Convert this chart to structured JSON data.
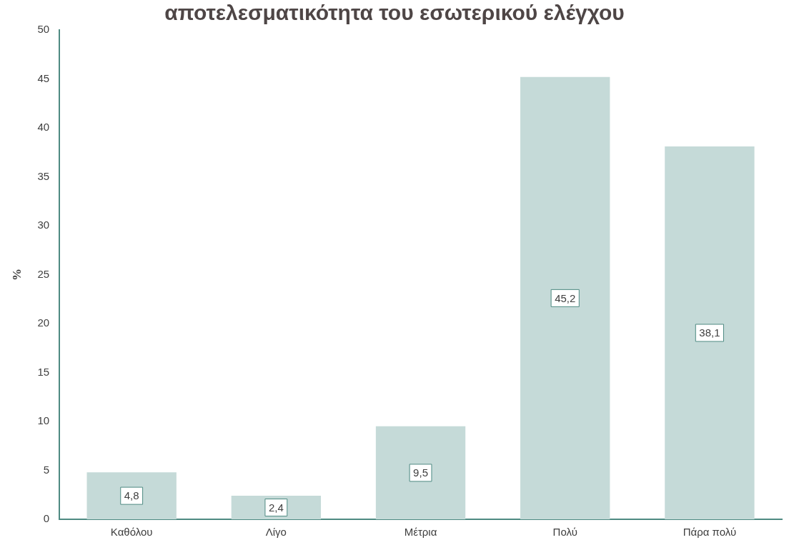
{
  "chart_data": {
    "type": "bar",
    "title": "αποτελεσματικότητα του εσωτερικού ελέγχου",
    "ylabel": "%",
    "categories": [
      "Καθόλου",
      "Λίγο",
      "Μέτρια",
      "Πολύ",
      "Πάρα πολύ"
    ],
    "values": [
      4.8,
      2.4,
      9.5,
      45.2,
      38.1
    ],
    "color": "#c5dad8",
    "value_labels": [
      "4,8",
      "2,4",
      "9,5",
      "45,2",
      "38,1"
    ],
    "ylim": [
      0,
      50
    ],
    "yticks": [
      0,
      5,
      10,
      15,
      20,
      25,
      30,
      35,
      40,
      45,
      50
    ],
    "grid": false,
    "legend": false
  }
}
